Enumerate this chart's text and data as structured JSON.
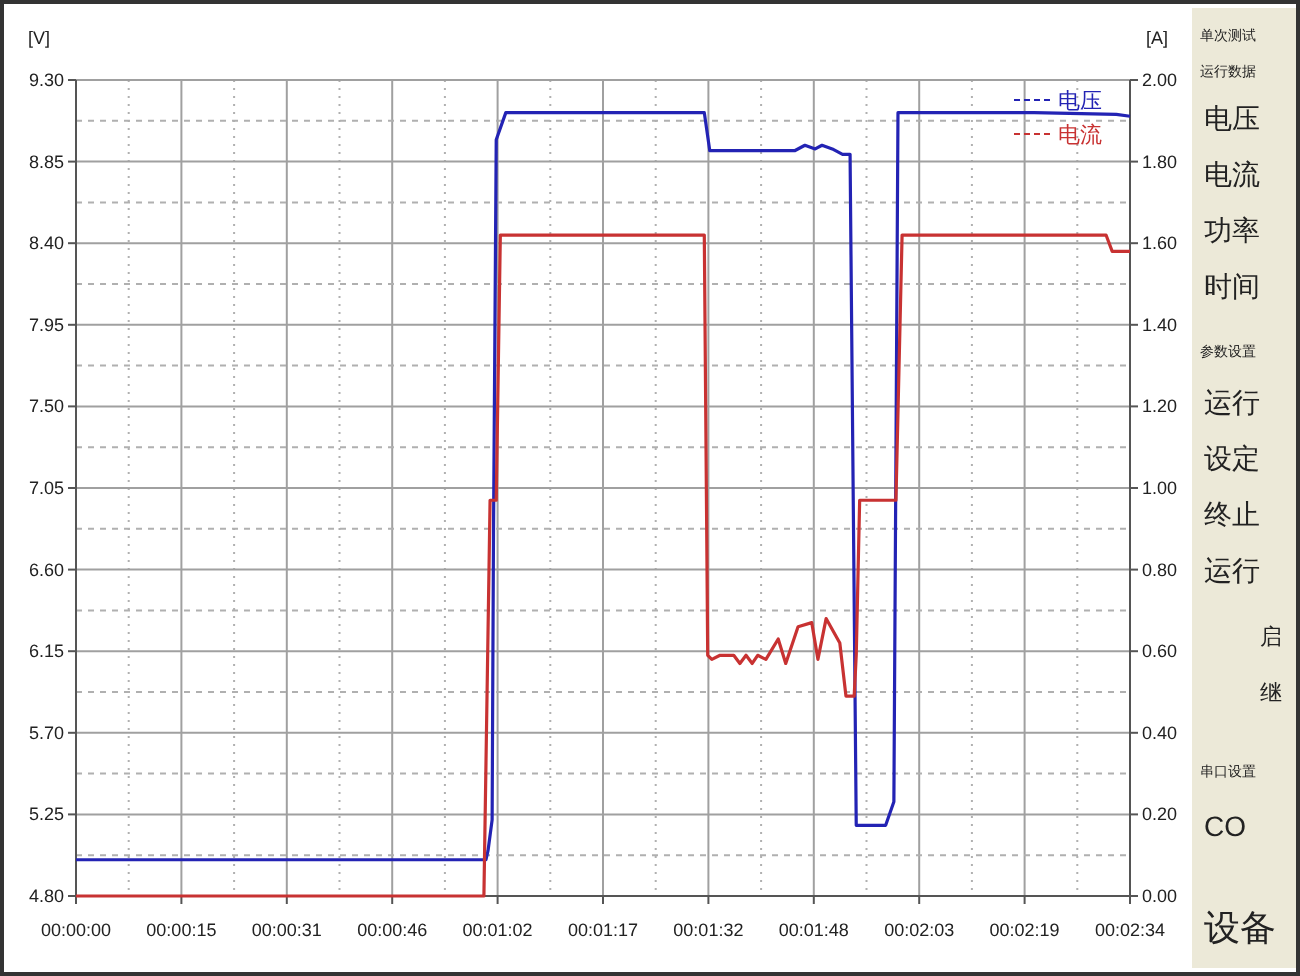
{
  "chart_data": {
    "type": "line",
    "ylabel": "[V]",
    "y2label": "[A]",
    "xlim": [
      0,
      154
    ],
    "xticks": [
      {
        "value": 0,
        "label": "00:00:00"
      },
      {
        "value": 15.4,
        "label": "00:00:15"
      },
      {
        "value": 30.8,
        "label": "00:00:31"
      },
      {
        "value": 46.2,
        "label": "00:00:46"
      },
      {
        "value": 61.6,
        "label": "00:01:02"
      },
      {
        "value": 77,
        "label": "00:01:17"
      },
      {
        "value": 92.4,
        "label": "00:01:32"
      },
      {
        "value": 107.8,
        "label": "00:01:48"
      },
      {
        "value": 123.2,
        "label": "00:02:03"
      },
      {
        "value": 138.6,
        "label": "00:02:19"
      },
      {
        "value": 154,
        "label": "00:02:34"
      }
    ],
    "ylim": [
      4.8,
      9.3
    ],
    "yticks": [
      {
        "value": 4.8,
        "label": "4.80"
      },
      {
        "value": 5.25,
        "label": "5.25"
      },
      {
        "value": 5.7,
        "label": "5.70"
      },
      {
        "value": 6.15,
        "label": "6.15"
      },
      {
        "value": 6.6,
        "label": "6.60"
      },
      {
        "value": 7.05,
        "label": "7.05"
      },
      {
        "value": 7.5,
        "label": "7.50"
      },
      {
        "value": 7.95,
        "label": "7.95"
      },
      {
        "value": 8.4,
        "label": "8.40"
      },
      {
        "value": 8.85,
        "label": "8.85"
      },
      {
        "value": 9.3,
        "label": "9.30"
      }
    ],
    "y2lim": [
      0,
      2
    ],
    "y2ticks": [
      {
        "value": 0,
        "label": "0.00"
      },
      {
        "value": 0.2,
        "label": "0.20"
      },
      {
        "value": 0.4,
        "label": "0.40"
      },
      {
        "value": 0.6,
        "label": "0.60"
      },
      {
        "value": 0.8,
        "label": "0.80"
      },
      {
        "value": 1,
        "label": "1.00"
      },
      {
        "value": 1.2,
        "label": "1.20"
      },
      {
        "value": 1.4,
        "label": "1.40"
      },
      {
        "value": 1.6,
        "label": "1.60"
      },
      {
        "value": 1.8,
        "label": "1.80"
      },
      {
        "value": 2,
        "label": "2.00"
      }
    ],
    "grid": true,
    "legend": "top right",
    "line_style": "solid",
    "series": [
      {
        "name": "电压",
        "color": "#2323b4",
        "x": [
          0,
          59.9,
          60.2,
          60.8,
          61.0,
          61.4,
          62.8,
          91.8,
          92.6,
          105,
          106.5,
          108,
          109,
          110.5,
          112,
          113.1,
          114.0,
          114.5,
          118.3,
          119.5,
          120.1,
          140,
          152,
          154
        ],
        "values": [
          5.0,
          5.0,
          5.05,
          5.22,
          6.8,
          8.97,
          9.12,
          9.12,
          8.91,
          8.91,
          8.94,
          8.92,
          8.94,
          8.92,
          8.89,
          8.89,
          5.19,
          5.19,
          5.19,
          5.32,
          9.12,
          9.12,
          9.11,
          9.1
        ]
      },
      {
        "name": "电流",
        "color": "#c83232",
        "axis": "y2",
        "x": [
          0,
          59.6,
          60.5,
          61.4,
          62.0,
          62.8,
          91.8,
          92.3,
          92.9,
          94.1,
          96.1,
          97.0,
          97.9,
          98.8,
          99.6,
          100.8,
          102.6,
          103.7,
          105.5,
          107.5,
          108.4,
          109.6,
          111.6,
          112.5,
          113.7,
          114.0,
          114.5,
          118.3,
          119.8,
          120.7,
          150.5,
          151.4,
          154
        ],
        "values": [
          0,
          0,
          0.97,
          0.97,
          1.62,
          1.62,
          1.62,
          0.59,
          0.58,
          0.59,
          0.59,
          0.57,
          0.59,
          0.57,
          0.59,
          0.58,
          0.63,
          0.57,
          0.66,
          0.67,
          0.58,
          0.68,
          0.62,
          0.49,
          0.49,
          0.59,
          0.97,
          0.97,
          0.97,
          1.62,
          1.62,
          1.58,
          1.58
        ]
      }
    ],
    "annotations": [
      "单次测试",
      "运行数据",
      "电压",
      "电流",
      "功率",
      "时间",
      "参数设置",
      "运行",
      "设定",
      "终止",
      "运行",
      "启",
      "继",
      "串口设置",
      "CO",
      "设备"
    ]
  }
}
